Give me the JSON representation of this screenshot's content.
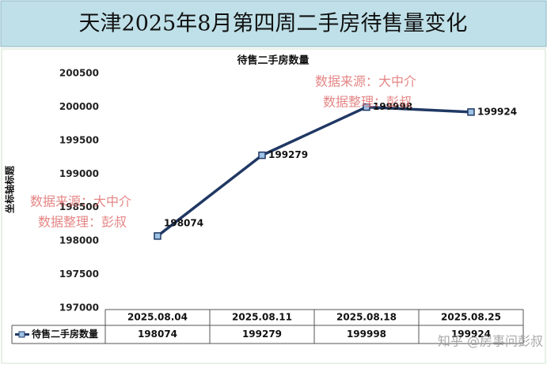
{
  "chart_data": {
    "type": "line",
    "title": "天津2025年8月第四周二手房待售量变化",
    "subtitle": "待售二手房数量",
    "y_label": "坐标轴标题",
    "categories": [
      "2025.08.04",
      "2025.08.11",
      "2025.08.18",
      "2025.08.25"
    ],
    "series": [
      {
        "name": "待售二手房数量",
        "color": "#203864",
        "values": [
          198074,
          199279,
          199998,
          199924
        ]
      }
    ],
    "ylim": [
      197000,
      200500
    ],
    "yticks": [
      197000,
      197500,
      198000,
      198500,
      199000,
      199500,
      200000,
      200500
    ],
    "grid": false,
    "annotations": [
      "数据来源：大中介",
      "数据整理：彭叔"
    ],
    "watermark": "知乎 @房事问彭叔"
  }
}
